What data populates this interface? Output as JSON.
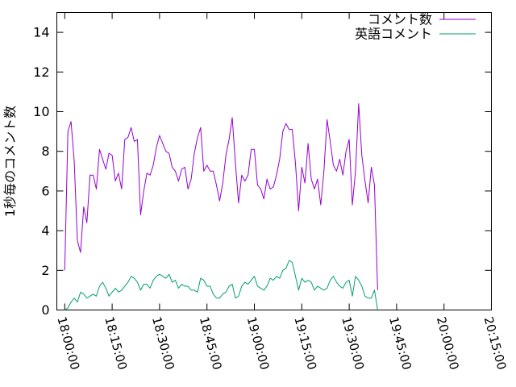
{
  "chart_data": {
    "type": "line",
    "title": "",
    "xlabel": "",
    "ylabel": "1秒毎のコメント数",
    "x_ticks": [
      "18:00:00",
      "18:15:00",
      "18:30:00",
      "18:45:00",
      "19:00:00",
      "19:15:00",
      "19:30:00",
      "19:45:00",
      "20:00:00",
      "20:15:00"
    ],
    "y_ticks": [
      "0",
      "2",
      "4",
      "6",
      "8",
      "10",
      "12",
      "14"
    ],
    "xlim": [
      "17:57:30",
      "20:15:00"
    ],
    "ylim": [
      0,
      15
    ],
    "grid": false,
    "legend_position": "top-right",
    "x_start": "18:00:00",
    "x_step_seconds": 60,
    "series": [
      {
        "name": "コメント数",
        "color": "#9400d3",
        "values": [
          2.0,
          9.0,
          9.5,
          7.5,
          3.5,
          2.9,
          5.2,
          4.4,
          6.8,
          6.8,
          6.1,
          8.1,
          7.6,
          7.1,
          7.9,
          7.8,
          6.5,
          6.9,
          6.1,
          8.6,
          8.7,
          9.2,
          8.5,
          8.6,
          4.8,
          6.0,
          6.9,
          6.8,
          7.3,
          8.2,
          8.8,
          8.4,
          8.0,
          7.9,
          7.2,
          7.0,
          6.5,
          7.1,
          7.2,
          6.1,
          6.6,
          7.9,
          8.7,
          9.2,
          7.0,
          7.3,
          7.0,
          7.0,
          6.3,
          5.5,
          6.4,
          7.8,
          8.6,
          9.7,
          7.4,
          5.4,
          6.8,
          6.5,
          6.8,
          8.1,
          8.1,
          6.3,
          6.1,
          5.6,
          6.6,
          6.1,
          6.2,
          6.8,
          7.6,
          9.0,
          9.4,
          9.1,
          9.1,
          7.4,
          5.0,
          7.2,
          6.4,
          8.4,
          6.6,
          6.1,
          6.6,
          5.3,
          7.0,
          9.6,
          8.5,
          7.3,
          7.0,
          7.6,
          6.8,
          8.0,
          8.6,
          5.3,
          7.0,
          10.4,
          7.8,
          6.5,
          5.4,
          7.2,
          6.3,
          1.0
        ]
      },
      {
        "name": "英語コメント",
        "color": "#009e73",
        "values": [
          0.0,
          0.1,
          0.4,
          0.6,
          0.4,
          0.9,
          0.8,
          0.6,
          0.7,
          0.8,
          0.7,
          1.2,
          1.4,
          1.1,
          0.7,
          0.9,
          1.1,
          0.9,
          1.0,
          1.2,
          1.4,
          1.7,
          1.6,
          1.4,
          1.0,
          1.3,
          1.3,
          1.1,
          1.5,
          1.7,
          1.8,
          1.7,
          1.6,
          1.8,
          1.4,
          1.5,
          1.1,
          1.3,
          1.2,
          1.2,
          1.0,
          1.0,
          0.9,
          1.6,
          1.5,
          1.2,
          1.2,
          0.8,
          0.6,
          0.6,
          0.8,
          0.9,
          1.2,
          1.3,
          0.6,
          0.7,
          1.2,
          1.4,
          1.3,
          1.5,
          1.7,
          1.2,
          1.1,
          1.0,
          1.2,
          1.6,
          1.5,
          1.7,
          1.6,
          2.0,
          2.1,
          2.5,
          2.4,
          1.7,
          1.0,
          1.6,
          1.4,
          1.5,
          1.4,
          1.0,
          1.2,
          1.1,
          1.0,
          1.1,
          1.5,
          1.7,
          1.4,
          1.2,
          1.1,
          1.4,
          1.5,
          0.7,
          1.7,
          1.5,
          1.2,
          0.7,
          0.6,
          0.6,
          1.0,
          0.0
        ]
      }
    ]
  }
}
